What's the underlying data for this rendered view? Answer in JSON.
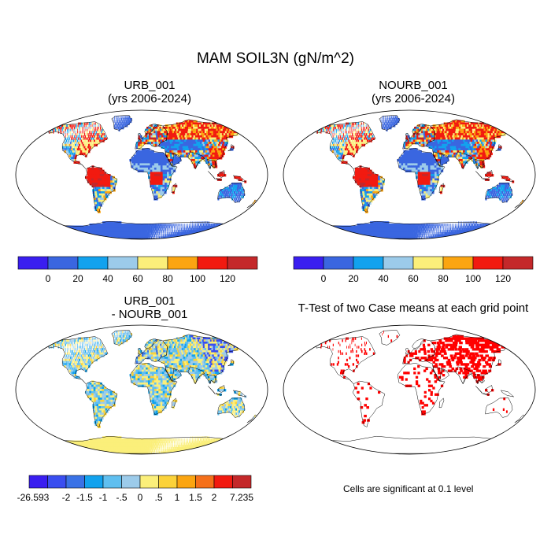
{
  "title": "MAM SOIL3N (gN/m^2)",
  "panels": {
    "p1": {
      "line1": "URB_001",
      "line2": "(yrs 2006-2024)"
    },
    "p2": {
      "line1": "NOURB_001",
      "line2": "(yrs 2006-2024)"
    },
    "p3": {
      "line1": "URB_001",
      "line2": "- NOURB_001"
    },
    "p4": {
      "line1": "T-Test of two Case means at each grid point"
    }
  },
  "significance_note": "Cells are significant at 0.1 level",
  "chart_data": [
    {
      "type": "heatmap",
      "panel": "URB_001",
      "subtitle": "(yrs 2006-2024)",
      "variable": "SOIL3N",
      "units": "gN/m^2",
      "season": "MAM",
      "colorbar": {
        "levels": [
          "0",
          "20",
          "40",
          "60",
          "80",
          "100",
          "120"
        ],
        "colors": [
          "#3a1ef0",
          "#3a66e0",
          "#12a2ee",
          "#9ccbea",
          "#fbef7a",
          "#fba511",
          "#f21a10",
          "#c4282a"
        ]
      }
    },
    {
      "type": "heatmap",
      "panel": "NOURB_001",
      "subtitle": "(yrs 2006-2024)",
      "variable": "SOIL3N",
      "units": "gN/m^2",
      "season": "MAM",
      "colorbar": {
        "levels": [
          "0",
          "20",
          "40",
          "60",
          "80",
          "100",
          "120"
        ],
        "colors": [
          "#3a1ef0",
          "#3a66e0",
          "#12a2ee",
          "#9ccbea",
          "#fbef7a",
          "#fba511",
          "#f21a10",
          "#c4282a"
        ]
      }
    },
    {
      "type": "heatmap",
      "panel": "URB_001 - NOURB_001",
      "variable": "SOIL3N difference",
      "units": "gN/m^2",
      "colorbar": {
        "levels": [
          "-26.593",
          "-2",
          "-1.5",
          "-1",
          "-.5",
          "0",
          ".5",
          "1",
          "1.5",
          "2",
          "7.235"
        ],
        "colors": [
          "#3a1ef0",
          "#3a4ef0",
          "#3a72e6",
          "#12a2ee",
          "#5fbff0",
          "#9ccbea",
          "#fbef7a",
          "#fbd23a",
          "#fba511",
          "#f5701a",
          "#f21a10",
          "#c4282a"
        ],
        "label_order": [
          "-26.593",
          "-2",
          "-1.5",
          "-1",
          "-.5",
          "0",
          ".5",
          "1",
          "1.5",
          "2",
          "7.235"
        ]
      }
    },
    {
      "type": "heatmap",
      "panel": "T-Test of two Case means at each grid point",
      "significance_level": 0.1,
      "mark_color": "#ff0000"
    }
  ]
}
